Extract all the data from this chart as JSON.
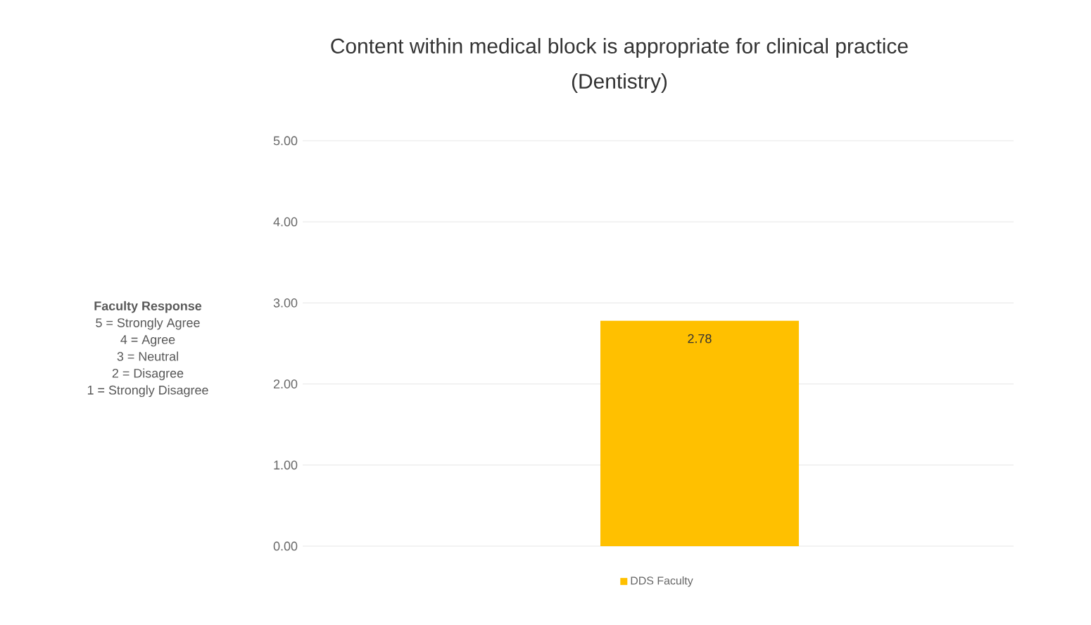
{
  "chart_data": {
    "type": "bar",
    "title": "Content within  medical block is appropriate for clinical practice",
    "subtitle": "(Dentistry)",
    "categories": [
      null
    ],
    "series": [
      {
        "name": "DDS Faculty",
        "color": "#ffc000",
        "values": [
          2.78
        ]
      }
    ],
    "ylim": [
      0,
      5
    ],
    "yticks": [
      {
        "value": 0,
        "label": "0.00"
      },
      {
        "value": 1,
        "label": "1.00"
      },
      {
        "value": 2,
        "label": "2.00"
      },
      {
        "value": 3,
        "label": "3.00"
      },
      {
        "value": 4,
        "label": "4.00"
      },
      {
        "value": 5,
        "label": "5.00"
      }
    ],
    "grid": "y",
    "legend": "bottom",
    "data_labels": true,
    "annotations": [
      "**Faculty Response**",
      "5 = Strongly Agree",
      "4 = Agree",
      "3 = Neutral",
      "2 = Disagree",
      "1 = Strongly Disagree"
    ]
  }
}
